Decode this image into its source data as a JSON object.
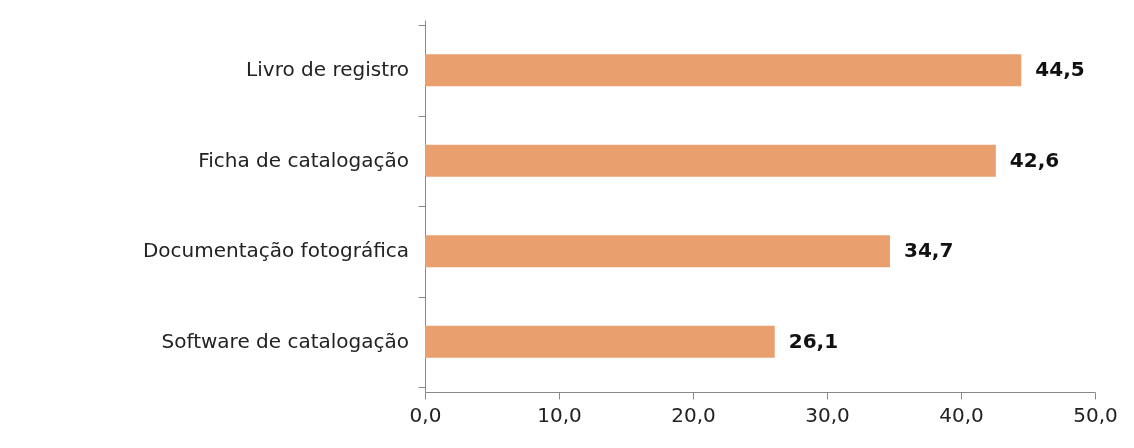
{
  "chart_data": {
    "type": "bar",
    "orientation": "horizontal",
    "categories": [
      "Livro de registro",
      "Ficha de catalogação",
      "Documentação fotográfica",
      "Software de catalogação"
    ],
    "values": [
      44.5,
      42.6,
      34.7,
      26.1
    ],
    "color": "#e9a06e",
    "value_labels": [
      "44,5",
      "42,6",
      "34,7",
      "26,1"
    ],
    "xlim": [
      0,
      50
    ],
    "xticks": [
      {
        "value": 0,
        "label": "0,0"
      },
      {
        "value": 10,
        "label": "10,0"
      },
      {
        "value": 20,
        "label": "20,0"
      },
      {
        "value": 30,
        "label": "30,0"
      },
      {
        "value": 40,
        "label": "40,0"
      },
      {
        "value": 50,
        "label": "50,0"
      }
    ],
    "grid": false
  }
}
